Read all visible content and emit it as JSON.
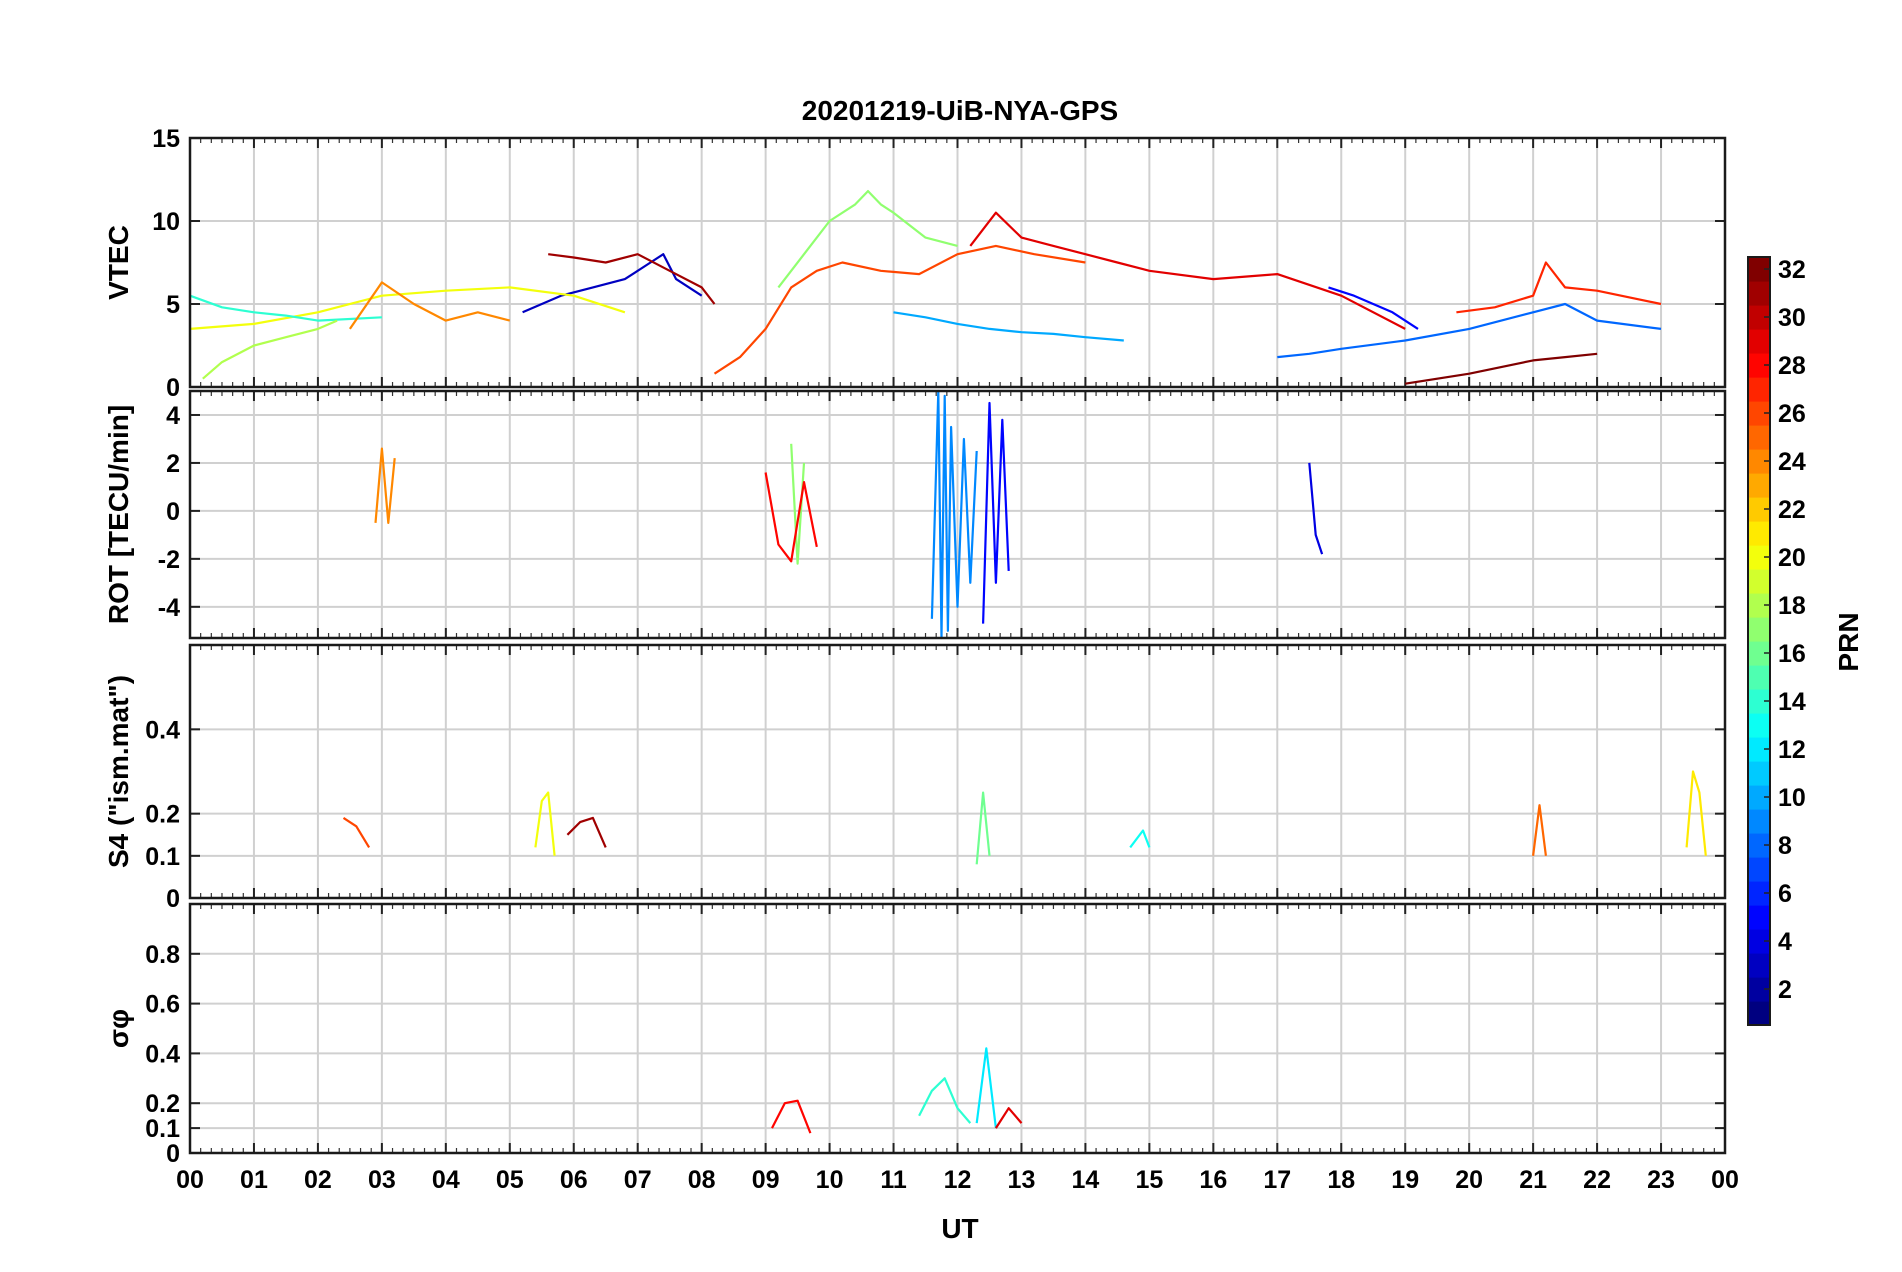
{
  "chart_data": [
    {
      "type": "line",
      "panel": "vtec",
      "title": "20201219-UiB-NYA-GPS",
      "ylabel": "VTEC",
      "ylim": [
        0,
        15
      ],
      "yticks": [
        0,
        5,
        10,
        15
      ],
      "yticklabels": [
        "0",
        "5",
        "10",
        "15"
      ],
      "xlim": [
        0,
        24
      ],
      "grid": true,
      "series": [
        {
          "prn": 3,
          "x": [
            5.2,
            5.8,
            6.3,
            6.8,
            7.2,
            7.4,
            7.6,
            8.0
          ],
          "y": [
            4.5,
            5.5,
            6.0,
            6.5,
            7.5,
            8.0,
            6.5,
            5.5
          ]
        },
        {
          "prn": 10,
          "x": [
            11.0,
            11.5,
            12.0,
            12.5,
            13.0,
            13.5,
            14.0,
            14.6
          ],
          "y": [
            4.5,
            4.2,
            3.8,
            3.5,
            3.3,
            3.2,
            3.0,
            2.8
          ]
        },
        {
          "prn": 17,
          "x": [
            9.2,
            9.6,
            10.0,
            10.4,
            10.6,
            10.8,
            11.0,
            11.5,
            12.0
          ],
          "y": [
            6.0,
            8.0,
            10.0,
            11.0,
            11.8,
            11.0,
            10.5,
            9.0,
            8.5
          ]
        },
        {
          "prn": 31,
          "x": [
            5.6,
            6.0,
            6.5,
            7.0,
            7.5,
            8.0,
            8.2
          ],
          "y": [
            8.0,
            7.8,
            7.5,
            8.0,
            7.0,
            6.0,
            5.0
          ]
        },
        {
          "prn": 29,
          "x": [
            12.2,
            12.6,
            13.0,
            13.5,
            14.0,
            14.5,
            15.0,
            16.0,
            17.0,
            18.0,
            19.0
          ],
          "y": [
            8.5,
            10.5,
            9.0,
            8.5,
            8.0,
            7.5,
            7.0,
            6.5,
            6.8,
            5.5,
            3.5
          ]
        },
        {
          "prn": 26,
          "x": [
            8.2,
            8.6,
            9.0,
            9.4,
            9.8,
            10.2,
            10.8,
            11.4,
            12.0,
            12.6,
            13.2,
            14.0
          ],
          "y": [
            0.8,
            1.8,
            3.5,
            6.0,
            7.0,
            7.5,
            7.0,
            6.8,
            8.0,
            8.5,
            8.0,
            7.5
          ]
        },
        {
          "prn": 20,
          "x": [
            0,
            1,
            2,
            3,
            4,
            5,
            6,
            6.8
          ],
          "y": [
            3.5,
            3.8,
            4.5,
            5.5,
            5.8,
            6.0,
            5.5,
            4.5
          ]
        },
        {
          "prn": 14,
          "x": [
            0,
            0.5,
            1.0,
            1.5,
            2.0,
            3.0
          ],
          "y": [
            5.5,
            4.8,
            4.5,
            4.3,
            4.0,
            4.2
          ]
        },
        {
          "prn": 5,
          "x": [
            17.8,
            18.2,
            18.8,
            19.2
          ],
          "y": [
            6.0,
            5.5,
            4.5,
            3.5
          ]
        },
        {
          "prn": 27,
          "x": [
            19.8,
            20.4,
            21.0,
            21.2,
            21.5,
            22.0,
            23.0
          ],
          "y": [
            4.5,
            4.8,
            5.5,
            7.5,
            6.0,
            5.8,
            5.0
          ]
        },
        {
          "prn": 24,
          "x": [
            2.5,
            3.0,
            3.5,
            4.0,
            4.5,
            5.0
          ],
          "y": [
            3.5,
            6.3,
            5.0,
            4.0,
            4.5,
            4.0
          ]
        },
        {
          "prn": 18,
          "x": [
            0.2,
            0.5,
            1.0,
            1.5,
            2.0,
            2.3
          ],
          "y": [
            0.5,
            1.5,
            2.5,
            3.0,
            3.5,
            4.0
          ]
        },
        {
          "prn": 32,
          "x": [
            19.0,
            20.0,
            21.0,
            21.5,
            22.0
          ],
          "y": [
            0.2,
            0.8,
            1.6,
            1.8,
            2.0
          ]
        },
        {
          "prn": 8,
          "x": [
            17.0,
            17.5,
            18.0,
            19.0,
            20.0,
            21.0,
            21.5,
            22.0,
            23.0
          ],
          "y": [
            1.8,
            2.0,
            2.3,
            2.8,
            3.5,
            4.5,
            5.0,
            4.0,
            3.5
          ]
        }
      ]
    },
    {
      "type": "line",
      "panel": "rot",
      "ylabel": "ROT [TECU/min]",
      "ylim": [
        -5.3,
        5.0
      ],
      "yticks": [
        -4,
        -2,
        0,
        2,
        4
      ],
      "yticklabels": [
        "-4",
        "-2",
        "0",
        "2",
        "4"
      ],
      "xlim": [
        0,
        24
      ],
      "grid": true,
      "series": [
        {
          "prn": 9,
          "x": [
            11.6,
            11.7,
            11.75,
            11.8,
            11.85,
            11.9,
            12.0,
            12.1,
            12.2,
            12.3
          ],
          "y": [
            -4.5,
            5.0,
            -5.3,
            4.8,
            -5.0,
            3.5,
            -4.0,
            3.0,
            -3.0,
            2.5
          ]
        },
        {
          "prn": 5,
          "x": [
            12.4,
            12.5,
            12.6,
            12.7,
            12.8
          ],
          "y": [
            -4.7,
            4.5,
            -3.0,
            3.8,
            -2.5
          ]
        },
        {
          "prn": 24,
          "x": [
            2.9,
            3.0,
            3.1,
            3.2
          ],
          "y": [
            -0.5,
            2.6,
            -0.5,
            2.2
          ]
        },
        {
          "prn": 17,
          "x": [
            9.4,
            9.5,
            9.6
          ],
          "y": [
            2.8,
            -2.2,
            2.0
          ]
        },
        {
          "prn": 28,
          "x": [
            9.0,
            9.2,
            9.4,
            9.6,
            9.8
          ],
          "y": [
            1.6,
            -1.4,
            -2.1,
            1.2,
            -1.5
          ]
        },
        {
          "prn": 4,
          "x": [
            17.5,
            17.6,
            17.7
          ],
          "y": [
            2.0,
            -1.0,
            -1.8
          ]
        }
      ]
    },
    {
      "type": "line",
      "panel": "s4",
      "ylabel": "S4 (\"ism.mat\")",
      "ylim": [
        0,
        0.6
      ],
      "yticks": [
        0,
        0.1,
        0.2,
        0.4
      ],
      "yticklabels": [
        "0",
        "0.1",
        "0.2",
        "0.4"
      ],
      "xlim": [
        0,
        24
      ],
      "grid": true,
      "series": [
        {
          "prn": 20,
          "x": [
            5.4,
            5.5,
            5.6,
            5.7
          ],
          "y": [
            0.12,
            0.23,
            0.25,
            0.1
          ]
        },
        {
          "prn": 31,
          "x": [
            5.9,
            6.1,
            6.3,
            6.5
          ],
          "y": [
            0.15,
            0.18,
            0.19,
            0.12
          ]
        },
        {
          "prn": 16,
          "x": [
            12.3,
            12.4,
            12.5
          ],
          "y": [
            0.08,
            0.25,
            0.1
          ]
        },
        {
          "prn": 26,
          "x": [
            2.4,
            2.6,
            2.8
          ],
          "y": [
            0.19,
            0.17,
            0.12
          ]
        },
        {
          "prn": 25,
          "x": [
            21.0,
            21.1,
            21.2
          ],
          "y": [
            0.1,
            0.22,
            0.1
          ]
        },
        {
          "prn": 21,
          "x": [
            23.4,
            23.5,
            23.6,
            23.7
          ],
          "y": [
            0.12,
            0.3,
            0.25,
            0.1
          ]
        },
        {
          "prn": 13,
          "x": [
            14.7,
            14.9,
            15.0
          ],
          "y": [
            0.12,
            0.16,
            0.12
          ]
        }
      ]
    },
    {
      "type": "line",
      "panel": "sigma_phi",
      "ylabel": "σφ",
      "xlabel": "UT",
      "ylim": [
        0,
        1.0
      ],
      "yticks": [
        0,
        0.1,
        0.2,
        0.4,
        0.6,
        0.8
      ],
      "yticklabels": [
        "0",
        "0.1",
        "0.2",
        "0.4",
        "0.6",
        "0.8"
      ],
      "xlim": [
        0,
        24
      ],
      "xticks": [
        0,
        1,
        2,
        3,
        4,
        5,
        6,
        7,
        8,
        9,
        10,
        11,
        12,
        13,
        14,
        15,
        16,
        17,
        18,
        19,
        20,
        21,
        22,
        23,
        24
      ],
      "xticklabels": [
        "00",
        "01",
        "02",
        "03",
        "04",
        "05",
        "06",
        "07",
        "08",
        "09",
        "10",
        "11",
        "12",
        "13",
        "14",
        "15",
        "16",
        "17",
        "18",
        "19",
        "20",
        "21",
        "22",
        "23",
        "00"
      ],
      "grid": true,
      "series": [
        {
          "prn": 14,
          "x": [
            11.4,
            11.6,
            11.8,
            12.0,
            12.2
          ],
          "y": [
            0.15,
            0.25,
            0.3,
            0.18,
            0.12
          ]
        },
        {
          "prn": 12,
          "x": [
            12.3,
            12.45,
            12.6
          ],
          "y": [
            0.12,
            0.42,
            0.1
          ]
        },
        {
          "prn": 28,
          "x": [
            9.1,
            9.3,
            9.5,
            9.7
          ],
          "y": [
            0.1,
            0.2,
            0.21,
            0.08
          ]
        },
        {
          "prn": 29,
          "x": [
            12.6,
            12.8,
            13.0
          ],
          "y": [
            0.1,
            0.18,
            0.12
          ]
        }
      ]
    }
  ],
  "colorbar": {
    "label": "PRN",
    "min": 1,
    "max": 32,
    "ticks": [
      2,
      4,
      6,
      8,
      10,
      12,
      14,
      16,
      18,
      20,
      22,
      24,
      26,
      28,
      30,
      32
    ],
    "colormap": "jet"
  }
}
